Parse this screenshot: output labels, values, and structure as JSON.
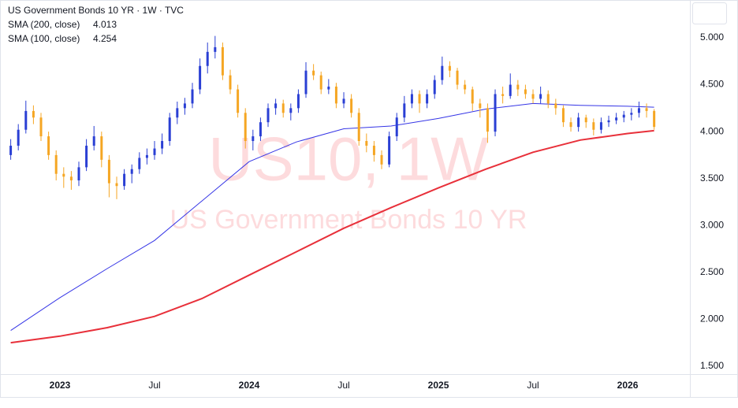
{
  "chart_data": {
    "type": "candlestick",
    "title": "US Government Bonds 10 YR · 1W · TVC",
    "watermark": "US10, 1W",
    "watermark_subtitle": "US Government Bonds 10 YR",
    "up_color": "#2a3fd4",
    "down_color": "#f5a623",
    "x": [
      2022.74,
      2022.78,
      2022.82,
      2022.86,
      2022.9,
      2022.94,
      2022.98,
      2023.02,
      2023.06,
      2023.1,
      2023.14,
      2023.18,
      2023.22,
      2023.26,
      2023.3,
      2023.34,
      2023.38,
      2023.42,
      2023.46,
      2023.5,
      2023.54,
      2023.58,
      2023.62,
      2023.66,
      2023.7,
      2023.74,
      2023.78,
      2023.82,
      2023.86,
      2023.9,
      2023.94,
      2023.98,
      2024.02,
      2024.06,
      2024.1,
      2024.14,
      2024.18,
      2024.22,
      2024.26,
      2024.3,
      2024.34,
      2024.38,
      2024.42,
      2024.46,
      2024.5,
      2024.54,
      2024.58,
      2024.62,
      2024.66,
      2024.7,
      2024.74,
      2024.78,
      2024.82,
      2024.86,
      2024.9,
      2024.94,
      2024.98,
      2025.02,
      2025.06,
      2025.1,
      2025.14,
      2025.18,
      2025.22,
      2025.26,
      2025.3,
      2025.34,
      2025.38,
      2025.42,
      2025.46,
      2025.5,
      2025.54,
      2025.58,
      2025.62,
      2025.66,
      2025.7,
      2025.74,
      2025.78,
      2025.82,
      2025.86,
      2025.9,
      2025.94,
      2025.98,
      2026.02,
      2026.06,
      2026.1,
      2026.14
    ],
    "candles": [
      [
        3.75,
        3.92,
        3.7,
        3.85
      ],
      [
        3.85,
        4.08,
        3.8,
        4.02
      ],
      [
        4.02,
        4.33,
        3.98,
        4.22
      ],
      [
        4.22,
        4.28,
        4.08,
        4.15
      ],
      [
        4.15,
        4.2,
        3.9,
        3.95
      ],
      [
        3.95,
        4.0,
        3.7,
        3.75
      ],
      [
        3.75,
        3.8,
        3.48,
        3.55
      ],
      [
        3.55,
        3.62,
        3.4,
        3.52
      ],
      [
        3.52,
        3.58,
        3.38,
        3.48
      ],
      [
        3.48,
        3.68,
        3.42,
        3.62
      ],
      [
        3.62,
        3.92,
        3.58,
        3.85
      ],
      [
        3.85,
        4.06,
        3.8,
        3.95
      ],
      [
        3.95,
        4.0,
        3.62,
        3.7
      ],
      [
        3.7,
        3.75,
        3.3,
        3.45
      ],
      [
        3.45,
        3.52,
        3.28,
        3.42
      ],
      [
        3.42,
        3.6,
        3.38,
        3.55
      ],
      [
        3.55,
        3.65,
        3.45,
        3.6
      ],
      [
        3.6,
        3.78,
        3.55,
        3.72
      ],
      [
        3.72,
        3.82,
        3.65,
        3.75
      ],
      [
        3.75,
        3.9,
        3.7,
        3.82
      ],
      [
        3.82,
        3.98,
        3.76,
        3.9
      ],
      [
        3.9,
        4.2,
        3.85,
        4.15
      ],
      [
        4.15,
        4.32,
        4.08,
        4.25
      ],
      [
        4.25,
        4.36,
        4.18,
        4.3
      ],
      [
        4.3,
        4.52,
        4.25,
        4.45
      ],
      [
        4.45,
        4.78,
        4.4,
        4.7
      ],
      [
        4.7,
        4.95,
        4.62,
        4.85
      ],
      [
        4.85,
        5.02,
        4.78,
        4.9
      ],
      [
        4.9,
        4.95,
        4.55,
        4.6
      ],
      [
        4.6,
        4.66,
        4.4,
        4.45
      ],
      [
        4.45,
        4.5,
        4.15,
        4.2
      ],
      [
        4.2,
        4.25,
        3.82,
        3.9
      ],
      [
        3.9,
        4.02,
        3.8,
        3.95
      ],
      [
        3.95,
        4.15,
        3.9,
        4.1
      ],
      [
        4.1,
        4.3,
        4.05,
        4.25
      ],
      [
        4.25,
        4.35,
        4.18,
        4.3
      ],
      [
        4.3,
        4.34,
        4.15,
        4.2
      ],
      [
        4.2,
        4.3,
        4.12,
        4.25
      ],
      [
        4.25,
        4.45,
        4.2,
        4.4
      ],
      [
        4.4,
        4.74,
        4.36,
        4.65
      ],
      [
        4.65,
        4.72,
        4.55,
        4.6
      ],
      [
        4.6,
        4.64,
        4.4,
        4.45
      ],
      [
        4.45,
        4.56,
        4.4,
        4.48
      ],
      [
        4.48,
        4.52,
        4.25,
        4.3
      ],
      [
        4.3,
        4.42,
        4.25,
        4.35
      ],
      [
        4.35,
        4.4,
        4.15,
        4.2
      ],
      [
        4.2,
        4.25,
        3.85,
        3.9
      ],
      [
        3.9,
        3.98,
        3.78,
        3.85
      ],
      [
        3.85,
        3.9,
        3.68,
        3.75
      ],
      [
        3.75,
        3.8,
        3.6,
        3.65
      ],
      [
        3.65,
        4.0,
        3.62,
        3.95
      ],
      [
        3.95,
        4.2,
        3.9,
        4.15
      ],
      [
        4.15,
        4.38,
        4.1,
        4.3
      ],
      [
        4.3,
        4.45,
        4.25,
        4.4
      ],
      [
        4.4,
        4.44,
        4.2,
        4.3
      ],
      [
        4.3,
        4.45,
        4.25,
        4.4
      ],
      [
        4.4,
        4.6,
        4.35,
        4.55
      ],
      [
        4.55,
        4.8,
        4.5,
        4.7
      ],
      [
        4.7,
        4.75,
        4.58,
        4.65
      ],
      [
        4.65,
        4.68,
        4.45,
        4.5
      ],
      [
        4.5,
        4.55,
        4.4,
        4.45
      ],
      [
        4.45,
        4.48,
        4.22,
        4.3
      ],
      [
        4.3,
        4.35,
        4.15,
        4.25
      ],
      [
        4.25,
        4.3,
        3.88,
        4.0
      ],
      [
        4.0,
        4.45,
        3.95,
        4.4
      ],
      [
        4.4,
        4.48,
        4.3,
        4.38
      ],
      [
        4.38,
        4.62,
        4.35,
        4.5
      ],
      [
        4.5,
        4.55,
        4.38,
        4.45
      ],
      [
        4.45,
        4.5,
        4.35,
        4.4
      ],
      [
        4.4,
        4.45,
        4.3,
        4.35
      ],
      [
        4.35,
        4.48,
        4.3,
        4.4
      ],
      [
        4.4,
        4.44,
        4.25,
        4.3
      ],
      [
        4.3,
        4.35,
        4.18,
        4.25
      ],
      [
        4.25,
        4.28,
        4.05,
        4.1
      ],
      [
        4.1,
        4.15,
        4.0,
        4.05
      ],
      [
        4.05,
        4.2,
        4.0,
        4.15
      ],
      [
        4.15,
        4.18,
        4.04,
        4.1
      ],
      [
        4.1,
        4.14,
        3.96,
        4.02
      ],
      [
        4.02,
        4.15,
        3.98,
        4.1
      ],
      [
        4.1,
        4.17,
        4.05,
        4.12
      ],
      [
        4.12,
        4.2,
        4.08,
        4.15
      ],
      [
        4.15,
        4.22,
        4.1,
        4.18
      ],
      [
        4.18,
        4.25,
        4.12,
        4.2
      ],
      [
        4.2,
        4.32,
        4.15,
        4.25
      ],
      [
        4.25,
        4.3,
        4.15,
        4.22
      ],
      [
        4.22,
        4.24,
        4.02,
        4.05
      ]
    ],
    "series": [
      {
        "name": "SMA (200, close)",
        "legend_value": 4.013,
        "color": "#e8303a",
        "width": 2,
        "x": [
          2022.74,
          2023.0,
          2023.25,
          2023.5,
          2023.75,
          2024.0,
          2024.25,
          2024.5,
          2024.75,
          2025.0,
          2025.25,
          2025.5,
          2025.75,
          2026.0,
          2026.14
        ],
        "values": [
          1.75,
          1.82,
          1.91,
          2.03,
          2.22,
          2.47,
          2.72,
          2.97,
          3.19,
          3.4,
          3.6,
          3.78,
          3.91,
          3.98,
          4.01
        ]
      },
      {
        "name": "SMA (100, close)",
        "legend_value": 4.254,
        "color": "#3535e6",
        "width": 1,
        "x": [
          2022.74,
          2023.0,
          2023.25,
          2023.5,
          2023.75,
          2024.0,
          2024.25,
          2024.5,
          2024.75,
          2025.0,
          2025.25,
          2025.5,
          2025.75,
          2026.0,
          2026.14
        ],
        "values": [
          1.88,
          2.23,
          2.54,
          2.84,
          3.26,
          3.68,
          3.89,
          4.03,
          4.06,
          4.14,
          4.24,
          4.3,
          4.28,
          4.27,
          4.26
        ]
      }
    ],
    "xlim": [
      2022.725,
      2026.329
    ],
    "xticks": [
      {
        "value": 2023,
        "label": "2023"
      },
      {
        "value": 2023.5,
        "label": "Jul"
      },
      {
        "value": 2024,
        "label": "2024"
      },
      {
        "value": 2024.5,
        "label": "Jul"
      },
      {
        "value": 2025,
        "label": "2025"
      },
      {
        "value": 2025.5,
        "label": "Jul"
      },
      {
        "value": 2026,
        "label": "2026"
      }
    ],
    "ylim": [
      1.415,
      5.403
    ],
    "yticks": [
      {
        "value": 1.5,
        "label": "1.500"
      },
      {
        "value": 2,
        "label": "2.000"
      },
      {
        "value": 2.5,
        "label": "2.500"
      },
      {
        "value": 3,
        "label": "3.000"
      },
      {
        "value": 3.5,
        "label": "3.500"
      },
      {
        "value": 4,
        "label": "4.000"
      },
      {
        "value": 4.5,
        "label": "4.500"
      },
      {
        "value": 5,
        "label": "5.000"
      }
    ],
    "grid": false
  }
}
